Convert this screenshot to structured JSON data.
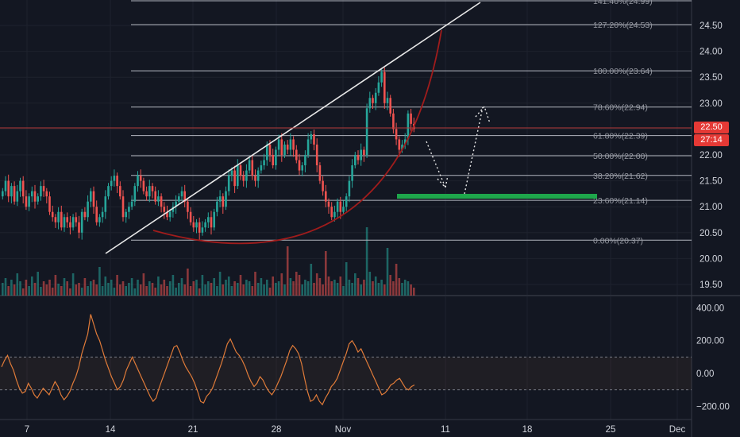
{
  "chart_data": [
    {
      "type": "candlestick",
      "pane": "price",
      "x_ticks": [
        "7",
        "14",
        "21",
        "28",
        "Nov",
        "11",
        "18",
        "25",
        "Dec"
      ],
      "y_ticks": [
        "19.50",
        "20.00",
        "20.50",
        "21.00",
        "21.50",
        "22.00",
        "22.50",
        "23.00",
        "23.50",
        "24.00",
        "24.50"
      ],
      "ylim": [
        19.3,
        25.0
      ],
      "last_price": 22.5,
      "last_price_label": "22.50",
      "countdown_label": "27:14",
      "fib_levels": [
        {
          "label": "0.00%(20.37)",
          "value": 20.37
        },
        {
          "label": "23.60%(21.14)",
          "value": 21.14
        },
        {
          "label": "38.20%(21.62)",
          "value": 21.62
        },
        {
          "label": "50.00%(22.00)",
          "value": 22.0
        },
        {
          "label": "61.80%(22.39)",
          "value": 22.39
        },
        {
          "label": "78.60%(22.94)",
          "value": 22.94
        },
        {
          "label": "100.00%(23.64)",
          "value": 23.64
        },
        {
          "label": "127.20%(24.53)",
          "value": 24.53
        },
        {
          "label": "141.40%(24.99)",
          "value": 24.99
        }
      ],
      "candles_close": [
        21.3,
        21.5,
        21.2,
        21.4,
        21.1,
        21.3,
        21.5,
        21.2,
        21.0,
        21.2,
        21.3,
        21.1,
        21.2,
        21.4,
        21.3,
        21.2,
        20.9,
        20.8,
        20.7,
        20.9,
        20.6,
        20.8,
        20.7,
        20.6,
        20.8,
        20.7,
        20.5,
        20.9,
        20.8,
        21.1,
        21.3,
        21.0,
        20.7,
        20.8,
        20.9,
        21.2,
        21.4,
        21.5,
        21.6,
        21.4,
        21.2,
        20.8,
        20.9,
        21.0,
        21.1,
        21.4,
        21.6,
        21.5,
        21.3,
        21.2,
        21.4,
        21.3,
        21.1,
        21.2,
        21.0,
        20.9,
        20.8,
        20.9,
        21.0,
        21.1,
        21.2,
        21.3,
        21.1,
        20.9,
        20.7,
        20.6,
        20.7,
        20.5,
        20.6,
        20.7,
        20.8,
        20.6,
        20.9,
        21.1,
        21.2,
        21.0,
        21.3,
        21.6,
        21.7,
        21.4,
        21.8,
        21.6,
        21.5,
        21.7,
        21.9,
        21.6,
        21.5,
        21.7,
        21.8,
        21.9,
        22.2,
        22.0,
        21.8,
        22.1,
        22.3,
        22.0,
        22.2,
        22.1,
        22.3,
        22.1,
        21.9,
        21.7,
        21.8,
        22.0,
        22.3,
        22.4,
        22.2,
        21.8,
        21.5,
        21.3,
        21.1,
        21.0,
        20.8,
        20.9,
        21.1,
        20.9,
        21.0,
        21.2,
        21.5,
        21.8,
        22.0,
        21.9,
        22.1,
        22.0,
        22.9,
        23.1,
        23.0,
        23.2,
        23.4,
        23.6,
        23.0,
        23.1,
        22.8,
        22.5,
        22.3,
        22.1,
        22.2,
        22.3,
        22.8,
        22.6,
        22.5
      ],
      "volume": [
        16,
        22,
        12,
        20,
        14,
        28,
        18,
        9,
        20,
        12,
        24,
        16,
        30,
        11,
        18,
        14,
        20,
        10,
        26,
        15,
        12,
        22,
        18,
        9,
        28,
        14,
        16,
        10,
        22,
        12,
        18,
        20,
        14,
        36,
        12,
        24,
        16,
        20,
        10,
        26,
        14,
        18,
        12,
        16,
        22,
        9,
        20,
        14,
        28,
        12,
        18,
        16,
        10,
        24,
        14,
        20,
        12,
        18,
        26,
        10,
        16,
        22,
        14,
        34,
        12,
        18,
        20,
        9,
        26,
        14,
        18,
        16,
        22,
        12,
        30,
        14,
        20,
        24,
        12,
        18,
        16,
        26,
        14,
        20,
        18,
        12,
        30,
        16,
        22,
        14,
        20,
        10,
        24,
        16,
        18,
        28,
        14,
        62,
        22,
        18,
        30,
        26,
        14,
        20,
        18,
        40,
        16,
        28,
        22,
        14,
        56,
        24,
        18,
        20,
        16,
        24,
        12,
        42,
        20,
        16,
        28,
        22,
        14,
        20,
        86,
        30,
        18,
        24,
        16,
        20,
        14,
        60,
        26,
        18,
        40,
        22,
        16,
        20,
        18,
        14,
        10
      ]
    },
    {
      "type": "line",
      "pane": "oscillator",
      "y_ticks": [
        "400.00",
        "200.00",
        "0.00",
        "−200.00"
      ],
      "ylim": [
        -260,
        440
      ],
      "band": [
        100,
        -100
      ],
      "values": [
        40,
        80,
        110,
        60,
        20,
        -40,
        -90,
        -120,
        -110,
        -60,
        -90,
        -130,
        -150,
        -120,
        -90,
        -110,
        -130,
        -90,
        -50,
        -80,
        -130,
        -160,
        -140,
        -110,
        -60,
        -20,
        40,
        120,
        180,
        240,
        360,
        300,
        240,
        200,
        140,
        80,
        30,
        -20,
        -60,
        -100,
        -80,
        -40,
        20,
        60,
        100,
        60,
        20,
        -20,
        -60,
        -100,
        -140,
        -170,
        -150,
        -90,
        -40,
        10,
        60,
        110,
        160,
        170,
        130,
        80,
        40,
        10,
        -20,
        -60,
        -110,
        -170,
        -180,
        -140,
        -120,
        -90,
        -40,
        10,
        60,
        120,
        180,
        210,
        170,
        130,
        110,
        80,
        40,
        -10,
        -50,
        -80,
        -60,
        -20,
        -40,
        -80,
        -110,
        -130,
        -100,
        -60,
        -20,
        30,
        80,
        140,
        170,
        150,
        120,
        60,
        -30,
        -110,
        -170,
        -160,
        -130,
        -170,
        -190,
        -150,
        -120,
        -80,
        -60,
        -30,
        20,
        70,
        120,
        180,
        200,
        170,
        130,
        150,
        110,
        70,
        30,
        -10,
        -50,
        -90,
        -130,
        -120,
        -100,
        -70,
        -60,
        -40,
        -30,
        -60,
        -90,
        -100,
        -80,
        -70
      ]
    }
  ]
}
